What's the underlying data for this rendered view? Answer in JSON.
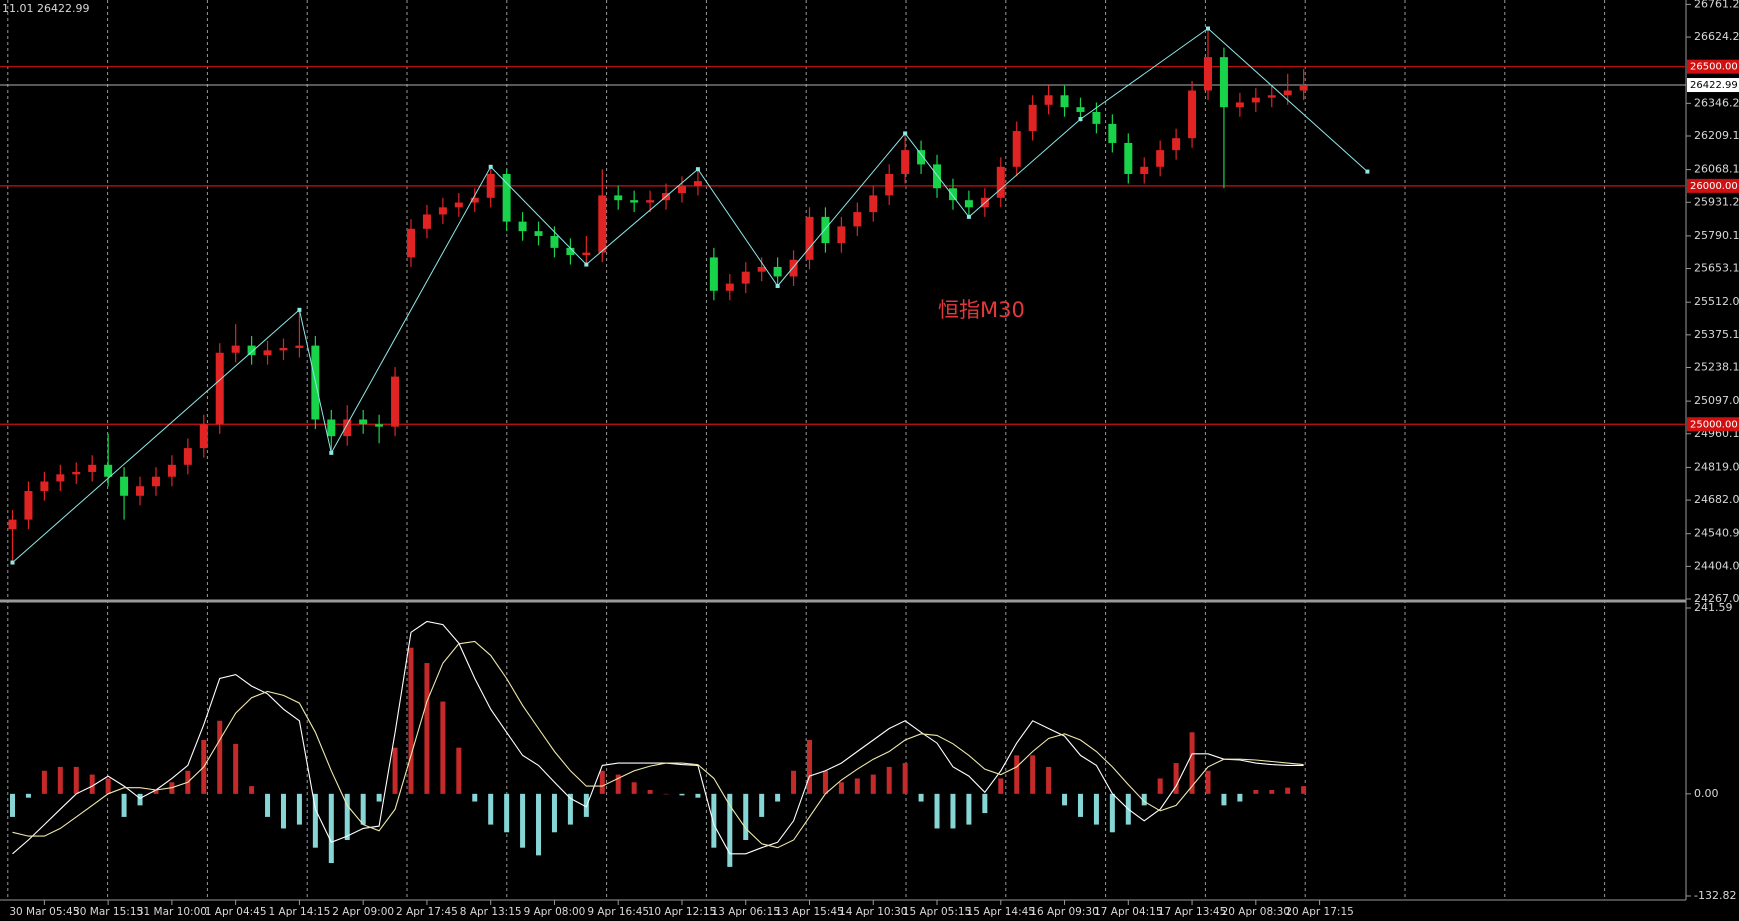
{
  "header": {
    "info": "11.01 26422.99"
  },
  "chart_data": [
    {
      "type": "candlestick",
      "annotation": "恒指M30",
      "categories": [
        null,
        null,
        "30 Mar 05:45",
        null,
        null,
        null,
        "30 Mar 15:15",
        null,
        null,
        null,
        "31 Mar 10:00",
        null,
        null,
        null,
        "1 Apr 04:45",
        null,
        null,
        null,
        "1 Apr 14:15",
        null,
        null,
        null,
        "2 Apr 09:00",
        null,
        null,
        null,
        "2 Apr 17:45",
        null,
        null,
        null,
        "8 Apr 13:15",
        null,
        null,
        null,
        "9 Apr 08:00",
        null,
        null,
        null,
        "9 Apr 16:45",
        null,
        null,
        null,
        "10 Apr 12:15",
        null,
        null,
        null,
        "13 Apr 06:15",
        null,
        null,
        null,
        "13 Apr 15:45",
        null,
        null,
        null,
        "14 Apr 10:30",
        null,
        null,
        null,
        "15 Apr 05:15",
        null,
        null,
        null,
        "15 Apr 14:45",
        null,
        null,
        null,
        "16 Apr 09:30",
        null,
        null,
        null,
        "17 Apr 04:15",
        null,
        null,
        null,
        "17 Apr 13:45",
        null,
        null,
        null,
        "20 Apr 08:30",
        null,
        null,
        null,
        "20 Apr 17:15"
      ],
      "open": [
        24560,
        24600,
        24720,
        24760,
        24790,
        24800,
        24830,
        24780,
        24700,
        24740,
        24780,
        24830,
        24900,
        25000,
        25300,
        25330,
        25290,
        25310,
        25320,
        25330,
        25020,
        24950,
        25020,
        25000,
        24990,
        25700,
        25820,
        25880,
        25910,
        25930,
        25950,
        26050,
        25850,
        25810,
        25790,
        25740,
        25710,
        25720,
        25960,
        25940,
        25930,
        25940,
        25970,
        26000,
        25700,
        25560,
        25590,
        25640,
        25660,
        25620,
        25690,
        25870,
        25760,
        25830,
        25890,
        25960,
        26050,
        26150,
        26090,
        25990,
        25940,
        25910,
        25950,
        26080,
        26230,
        26340,
        26380,
        26330,
        26310,
        26260,
        26180,
        26050,
        26080,
        26150,
        26200,
        26400,
        26540,
        26330,
        26350,
        26370,
        26380,
        26400,
        null
      ],
      "high": [
        24640,
        24760,
        24800,
        24830,
        24840,
        24870,
        24960,
        24820,
        24780,
        24820,
        24870,
        24940,
        25040,
        25340,
        25420,
        25370,
        25350,
        25360,
        25480,
        25370,
        25060,
        25080,
        25060,
        25040,
        25240,
        25860,
        25920,
        25950,
        25970,
        25990,
        26080,
        26070,
        25890,
        25850,
        25830,
        25780,
        25790,
        26070,
        26000,
        25980,
        25980,
        26010,
        26040,
        26070,
        25740,
        25630,
        25680,
        25700,
        25700,
        25730,
        25910,
        25910,
        25870,
        25930,
        26000,
        26090,
        26220,
        26190,
        26130,
        26030,
        25980,
        25990,
        26120,
        26270,
        26380,
        26420,
        26420,
        26370,
        26350,
        26300,
        26220,
        26120,
        26190,
        26240,
        26440,
        26660,
        26580,
        26390,
        26410,
        26420,
        26470,
        26490,
        null
      ],
      "low": [
        24420,
        24560,
        24680,
        24720,
        24750,
        24760,
        24740,
        24600,
        24660,
        24700,
        24740,
        24790,
        24860,
        24960,
        25260,
        25250,
        25250,
        25270,
        25280,
        24980,
        24880,
        24910,
        24960,
        24920,
        24950,
        25660,
        25780,
        25840,
        25870,
        25890,
        25910,
        25810,
        25770,
        25750,
        25700,
        25670,
        25670,
        25680,
        25900,
        25890,
        25890,
        25900,
        25930,
        25960,
        25520,
        25520,
        25550,
        25600,
        25580,
        25580,
        25650,
        25720,
        25720,
        25790,
        25850,
        25920,
        26010,
        26050,
        25950,
        25900,
        25870,
        25870,
        25910,
        26040,
        26190,
        26300,
        26290,
        26270,
        26220,
        26140,
        26010,
        26010,
        26040,
        26110,
        26160,
        26360,
        25990,
        26290,
        26310,
        26330,
        26340,
        26360,
        null
      ],
      "close": [
        24600,
        24720,
        24760,
        24790,
        24800,
        24830,
        24780,
        24700,
        24740,
        24780,
        24830,
        24900,
        25000,
        25300,
        25330,
        25290,
        25310,
        25320,
        25330,
        25020,
        24950,
        25020,
        25000,
        24990,
        25200,
        25820,
        25880,
        25910,
        25930,
        25950,
        26050,
        25850,
        25810,
        25790,
        25740,
        25710,
        25720,
        25960,
        25940,
        25930,
        25940,
        25970,
        26000,
        26020,
        25560,
        25590,
        25640,
        25660,
        25620,
        25690,
        25870,
        25760,
        25830,
        25890,
        25960,
        26050,
        26150,
        26090,
        25990,
        25940,
        25910,
        25950,
        26080,
        26230,
        26340,
        26380,
        26330,
        26310,
        26260,
        26180,
        26050,
        26080,
        26150,
        26200,
        26400,
        26540,
        26330,
        26350,
        26370,
        26380,
        26400,
        26422.99,
        null
      ],
      "up_color": "#e02424",
      "down_color": "#19d34a",
      "zigzag": {
        "color": "#8ee8e8",
        "x": [
          0,
          18,
          20,
          30,
          36,
          43,
          48,
          56,
          60,
          67,
          75,
          85
        ],
        "values": [
          24420,
          25480,
          24880,
          26080,
          25670,
          26070,
          25580,
          26220,
          25870,
          26280,
          26660,
          26060
        ]
      },
      "levels": [
        {
          "value": 26500,
          "label": "26500.00"
        },
        {
          "value": 26000,
          "label": "26000.00"
        },
        {
          "value": 25000,
          "label": "25000.00"
        }
      ],
      "level_color": "#d01010",
      "current_price": 26422.99,
      "ylim": [
        24267.05,
        26761.2
      ],
      "yticks": [
        {
          "value": 26761.2,
          "label": "26761.20"
        },
        26624.25,
        {
          "value": 26346.2,
          "label": "26346.20"
        },
        26209.15,
        26068.15,
        {
          "value": 25931.2,
          "label": "25931.20"
        },
        {
          "value": 25790.1,
          "label": "25790.10"
        },
        25653.15,
        25512.05,
        {
          "value": 25375.1,
          "label": "25375.10"
        },
        25238.15,
        25097.05,
        {
          "value": 24960.1,
          "label": "24960.10"
        },
        {
          "value": 24819,
          "label": "24819.00"
        },
        24682.05,
        24540.95,
        {
          "value": 24404,
          "label": "24404.00"
        },
        24267.05
      ],
      "grid": true
    },
    {
      "type": "macd",
      "histogram": [
        -30,
        -5,
        30,
        35,
        35,
        25,
        20,
        -30,
        -15,
        5,
        15,
        30,
        70,
        95,
        65,
        10,
        -30,
        -45,
        -40,
        -70,
        -90,
        -60,
        -40,
        -10,
        60,
        190,
        170,
        120,
        60,
        -10,
        -40,
        -50,
        -70,
        -80,
        -50,
        -40,
        -30,
        30,
        25,
        15,
        5,
        0,
        -2,
        -5,
        -70,
        -95,
        -60,
        -30,
        -10,
        30,
        70,
        30,
        15,
        20,
        25,
        35,
        40,
        -10,
        -45,
        -45,
        -40,
        -25,
        20,
        50,
        50,
        35,
        -15,
        -30,
        -40,
        -50,
        -40,
        -15,
        20,
        40,
        80,
        30,
        -15,
        -10,
        5,
        5,
        8,
        10,
        null
      ],
      "macd": [
        -78,
        -60,
        -40,
        -20,
        0,
        10,
        23,
        10,
        -6,
        5,
        20,
        37,
        90,
        150,
        155,
        140,
        130,
        110,
        95,
        -20,
        -63,
        -55,
        -45,
        -42,
        80,
        210,
        224,
        220,
        196,
        150,
        110,
        80,
        50,
        37,
        15,
        -6,
        -17,
        37,
        40,
        40,
        40,
        40,
        38,
        37,
        -40,
        -78,
        -78,
        -70,
        -63,
        -35,
        23,
        30,
        40,
        55,
        70,
        85,
        95,
        80,
        66,
        35,
        23,
        2,
        30,
        66,
        95,
        85,
        75,
        50,
        37,
        0,
        -20,
        -35,
        -20,
        10,
        52,
        52,
        45,
        44,
        40,
        38,
        37,
        37,
        null
      ],
      "signal": [
        -50,
        -55,
        -55,
        -45,
        -30,
        -15,
        0,
        8,
        8,
        5,
        8,
        15,
        35,
        70,
        105,
        125,
        133,
        128,
        118,
        80,
        30,
        -15,
        -40,
        -48,
        -20,
        50,
        120,
        170,
        195,
        198,
        180,
        150,
        115,
        85,
        55,
        30,
        10,
        10,
        20,
        30,
        36,
        40,
        40,
        38,
        20,
        -15,
        -45,
        -65,
        -70,
        -60,
        -30,
        0,
        18,
        32,
        45,
        55,
        70,
        78,
        76,
        65,
        50,
        32,
        25,
        35,
        55,
        72,
        78,
        70,
        55,
        35,
        12,
        -10,
        -22,
        -15,
        10,
        35,
        45,
        45,
        44,
        42,
        40,
        38,
        null
      ],
      "positive_color": "#c42a2a",
      "negative_color": "#86d6d6",
      "macd_color": "#ffffff",
      "signal_color": "#eee8aa",
      "ylim": [
        -132.82,
        241.59
      ],
      "yticks": [
        -132.82,
        {
          "value": 0,
          "label": "0.00"
        },
        241.59
      ]
    }
  ]
}
